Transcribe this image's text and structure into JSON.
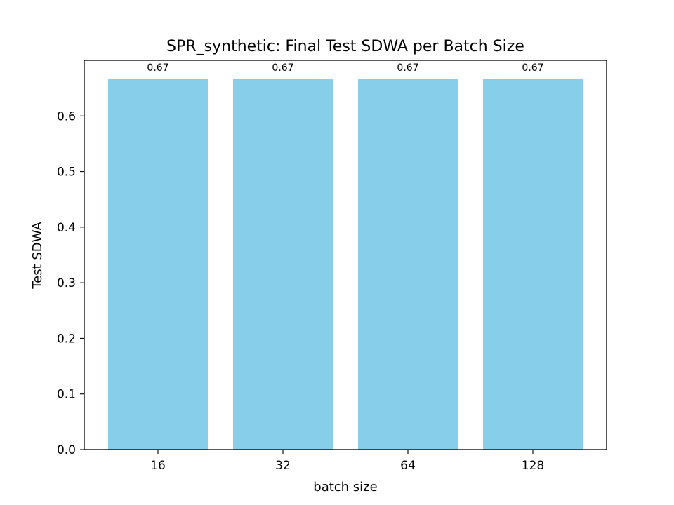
{
  "chart_data": {
    "type": "bar",
    "title": "SPR_synthetic: Final Test SDWA per Batch Size",
    "xlabel": "batch size",
    "ylabel": "Test SDWA",
    "categories": [
      "16",
      "32",
      "64",
      "128"
    ],
    "values": [
      0.666,
      0.666,
      0.666,
      0.666
    ],
    "data_labels": [
      "0.67",
      "0.67",
      "0.67",
      "0.67"
    ],
    "ylim": [
      0.0,
      0.7
    ],
    "yticks": [
      "0.0",
      "0.1",
      "0.2",
      "0.3",
      "0.4",
      "0.5",
      "0.6"
    ],
    "bar_color": "#87ceeb",
    "grid": false,
    "legend": "none"
  }
}
